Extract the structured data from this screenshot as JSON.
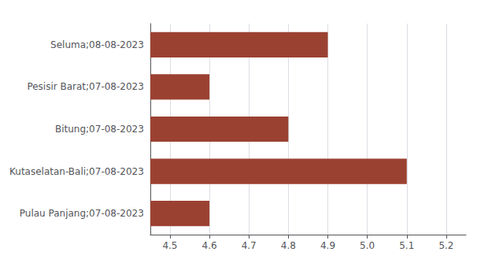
{
  "chart_data": {
    "type": "bar",
    "orientation": "horizontal",
    "categories": [
      "Pulau Panjang;07-08-2023",
      "Kutaselatan-Bali;07-08-2023",
      "Bitung;07-08-2023",
      "Pesisir Barat;07-08-2023",
      "Seluma;08-08-2023"
    ],
    "values": [
      4.6,
      5.1,
      4.8,
      4.6,
      4.9
    ],
    "color": "#9b4132",
    "xlim": [
      4.45,
      5.25
    ],
    "xticks": [
      4.5,
      4.6,
      4.7,
      4.8,
      4.9,
      {
        "value": 5.0,
        "label": "5.0"
      },
      5.1,
      5.2
    ],
    "grid": true
  }
}
